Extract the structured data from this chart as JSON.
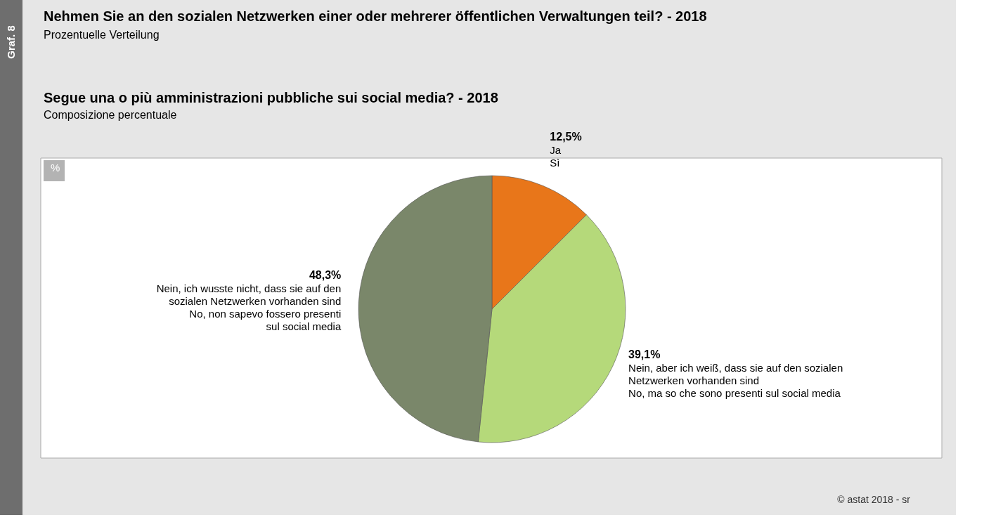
{
  "chart_data": {
    "type": "pie",
    "title": "Nehmen  Sie an den sozialen Netzwerken einer oder mehrerer öffentlichen Verwaltungen teil? - 2018",
    "subtitle": "Prozentuelle Verteilung",
    "annotations": [
      "Segue una o più amministrazioni pubbliche sui social media? - 2018",
      "Composizione percentuale",
      "%",
      "Graf. 8",
      "© astat 2018 - sr"
    ],
    "categories": [
      "Ja\nSì",
      "Nein, aber ich weiß, dass sie auf den sozialen\nNetzwerken vorhanden sind\nNo, ma so che sono presenti sul social media",
      "Nein, ich wusste nicht, dass sie auf den\nsozialen Netzwerken vorhanden sind\nNo, non sapevo fossero presenti\nsul social media"
    ],
    "values": [
      12.5,
      39.1,
      48.3
    ],
    "value_labels": [
      "12,5%",
      "39,1%",
      "48,3%"
    ],
    "colors": [
      "#e8761a",
      "#b5d97a",
      "#7a876a"
    ],
    "legend": false
  }
}
